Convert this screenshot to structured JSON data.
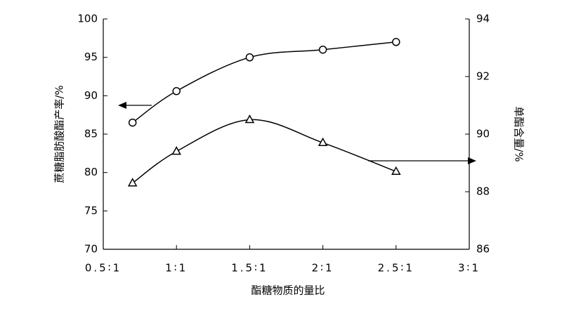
{
  "chart_data": {
    "type": "line",
    "x_label": "酯糖物质的量比",
    "y_label": "蔗糖脂肪酸酯产率/%",
    "y2_label": "单酯含量/%",
    "xlim": [
      0.5,
      3
    ],
    "xticks": [
      {
        "value": 0.5,
        "label": "0.5∶1"
      },
      {
        "value": 1,
        "label": "1∶1"
      },
      {
        "value": 1.5,
        "label": "1.5∶1"
      },
      {
        "value": 2,
        "label": "2∶1"
      },
      {
        "value": 2.5,
        "label": "2.5∶1"
      },
      {
        "value": 3,
        "label": "3∶1"
      }
    ],
    "ylim": [
      70,
      100
    ],
    "yticks": [
      70,
      75,
      80,
      85,
      90,
      95,
      100
    ],
    "y2lim": [
      86,
      94
    ],
    "y2ticks": [
      86,
      88,
      90,
      92,
      94
    ],
    "x": [
      0.7,
      1,
      1.5,
      2,
      2.5
    ],
    "series": [
      {
        "color": "#000000",
        "marker": "circle",
        "values": [
          86.5,
          90.6,
          95,
          96,
          97
        ]
      },
      {
        "color": "#000000",
        "marker": "triangle",
        "axis": "y2",
        "values": [
          88.3,
          89.4,
          90.5,
          89.7,
          88.7
        ]
      }
    ]
  }
}
